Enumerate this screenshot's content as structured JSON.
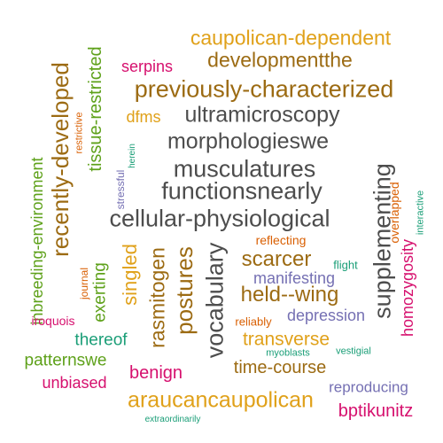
{
  "colors": {
    "gray": "#4d4d4d",
    "brown": "#9c6b13",
    "gold": "#e0a11a",
    "magenta": "#d6106e",
    "green": "#5ea11a",
    "teal": "#1a9e77",
    "purple": "#7570b3",
    "orange": "#d95f02"
  },
  "words": [
    {
      "text": "caupolican-dependent",
      "color": "gold"
    },
    {
      "text": "serpins",
      "color": "magenta"
    },
    {
      "text": "developmentthe",
      "color": "brown"
    },
    {
      "text": "previously-characterized",
      "color": "brown"
    },
    {
      "text": "dfms",
      "color": "gold"
    },
    {
      "text": "ultramicroscopy",
      "color": "gray"
    },
    {
      "text": "morphologieswe",
      "color": "gray"
    },
    {
      "text": "musculatures",
      "color": "gray"
    },
    {
      "text": "functionsnearly",
      "color": "gray"
    },
    {
      "text": "cellular-physiological",
      "color": "gray"
    },
    {
      "text": "recently-developed",
      "color": "brown"
    },
    {
      "text": "inbreeding-environment",
      "color": "green"
    },
    {
      "text": "tissue-restricted",
      "color": "green"
    },
    {
      "text": "restrictive",
      "color": "orange"
    },
    {
      "text": "herein",
      "color": "teal"
    },
    {
      "text": "stressful",
      "color": "purple"
    },
    {
      "text": "supplementing",
      "color": "gray"
    },
    {
      "text": "overlapped",
      "color": "orange"
    },
    {
      "text": "interactive",
      "color": "teal"
    },
    {
      "text": "homozygosity",
      "color": "magenta"
    },
    {
      "text": "reflecting",
      "color": "orange"
    },
    {
      "text": "scarcer",
      "color": "brown"
    },
    {
      "text": "flight",
      "color": "teal"
    },
    {
      "text": "manifesting",
      "color": "purple"
    },
    {
      "text": "held--wing",
      "color": "brown"
    },
    {
      "text": "vocabulary",
      "color": "gray"
    },
    {
      "text": "postures",
      "color": "brown"
    },
    {
      "text": "rasmitogen",
      "color": "brown"
    },
    {
      "text": "singled",
      "color": "gold"
    },
    {
      "text": "exerting",
      "color": "green"
    },
    {
      "text": "journal",
      "color": "orange"
    },
    {
      "text": "iroquois",
      "color": "magenta"
    },
    {
      "text": "reliably",
      "color": "orange"
    },
    {
      "text": "depression",
      "color": "purple"
    },
    {
      "text": "thereof",
      "color": "teal"
    },
    {
      "text": "transverse",
      "color": "gold"
    },
    {
      "text": "patternswe",
      "color": "green"
    },
    {
      "text": "myoblasts",
      "color": "teal"
    },
    {
      "text": "vestigial",
      "color": "teal"
    },
    {
      "text": "time-course",
      "color": "brown"
    },
    {
      "text": "benign",
      "color": "magenta"
    },
    {
      "text": "unbiased",
      "color": "magenta"
    },
    {
      "text": "araucancaupolican",
      "color": "gold"
    },
    {
      "text": "reproducing",
      "color": "purple"
    },
    {
      "text": "bptikunitz",
      "color": "magenta"
    },
    {
      "text": "extraordinarily",
      "color": "teal"
    }
  ]
}
